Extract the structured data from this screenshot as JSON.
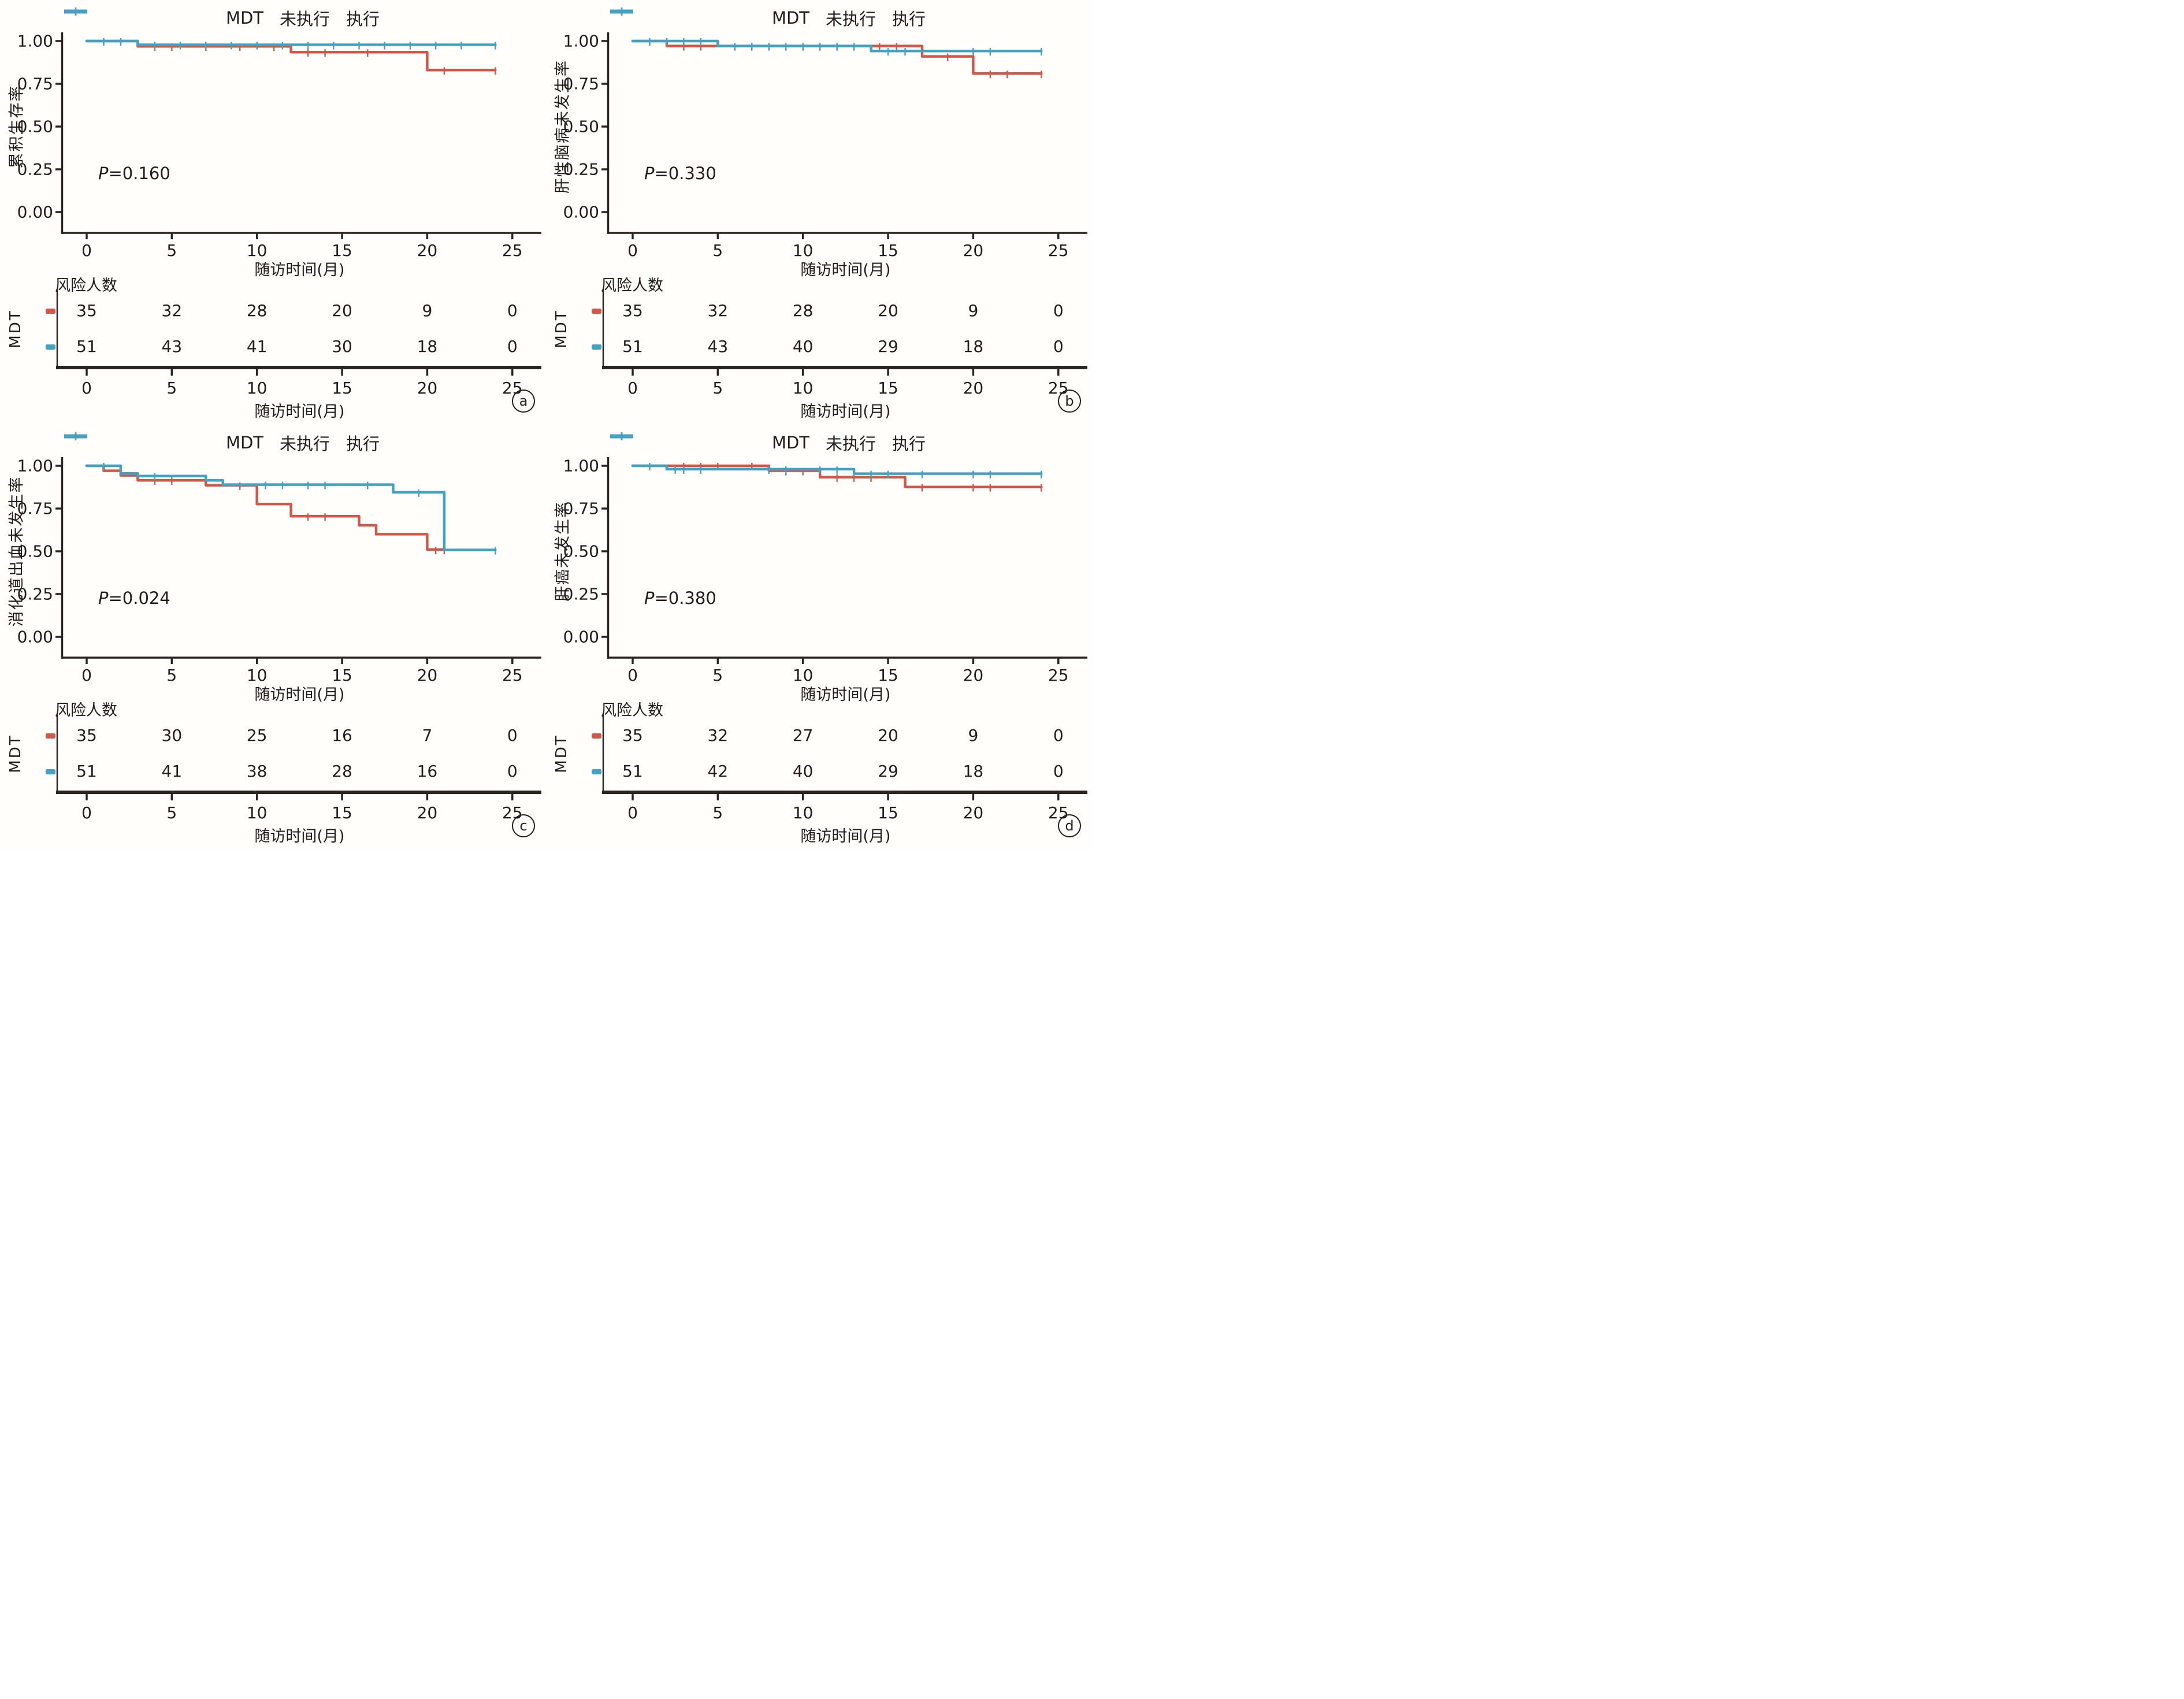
{
  "colors": {
    "red": "#d2574a",
    "blue": "#43a2c2",
    "axis": "#2a2422"
  },
  "legend": {
    "prefix": "MDT",
    "items": [
      {
        "label": "未执行",
        "color_key": "red"
      },
      {
        "label": "执行",
        "color_key": "blue"
      }
    ]
  },
  "axes": {
    "xlabel": "随访时间(月)",
    "x_ticks": [
      0,
      5,
      10,
      15,
      20,
      25
    ],
    "x_tick_labels": [
      "0",
      "5",
      "10",
      "15",
      "20",
      "25"
    ],
    "y_ticks": [
      1.0,
      0.75,
      0.5,
      0.25,
      0.0
    ],
    "y_tick_labels": [
      "1.00",
      "0.75",
      "0.50",
      "0.25",
      "0.00"
    ],
    "xlim": [
      0,
      25
    ],
    "ylim": [
      0,
      1
    ]
  },
  "risk": {
    "header": "风险人数",
    "row_label": "MDT"
  },
  "chart_data": [
    {
      "type": "line",
      "subtype": "kaplan_meier_step",
      "panel_tag": "a",
      "ylabel": "累积生存率",
      "p_italic": "P",
      "p_rest": "=0.160",
      "series": [
        {
          "name": "未执行",
          "color_key": "red",
          "end_month": 24,
          "steps": [
            [
              0,
              1.0
            ],
            [
              3,
              0.969
            ],
            [
              12,
              0.935
            ],
            [
              20,
              0.83
            ]
          ],
          "censors": [
            [
              4,
              0.969
            ],
            [
              5,
              0.969
            ],
            [
              7,
              0.969
            ],
            [
              9,
              0.969
            ],
            [
              11,
              0.969
            ],
            [
              13,
              0.935
            ],
            [
              14,
              0.935
            ],
            [
              16.5,
              0.935
            ],
            [
              21,
              0.83
            ],
            [
              24,
              0.83
            ]
          ]
        },
        {
          "name": "执行",
          "color_key": "blue",
          "end_month": 24,
          "steps": [
            [
              0,
              1.0
            ],
            [
              3,
              0.978
            ]
          ],
          "censors": [
            [
              1,
              1.0
            ],
            [
              2,
              1.0
            ],
            [
              4,
              0.978
            ],
            [
              5.5,
              0.978
            ],
            [
              7,
              0.978
            ],
            [
              8.5,
              0.978
            ],
            [
              10,
              0.978
            ],
            [
              11.5,
              0.978
            ],
            [
              13,
              0.978
            ],
            [
              14.5,
              0.978
            ],
            [
              16,
              0.978
            ],
            [
              17.5,
              0.978
            ],
            [
              19,
              0.978
            ],
            [
              20.5,
              0.978
            ],
            [
              22,
              0.978
            ],
            [
              24,
              0.978
            ]
          ]
        }
      ],
      "risk_rows": [
        {
          "color_key": "red",
          "counts": [
            35,
            32,
            28,
            20,
            9,
            0
          ]
        },
        {
          "color_key": "blue",
          "counts": [
            51,
            43,
            41,
            30,
            18,
            0
          ]
        }
      ]
    },
    {
      "type": "line",
      "subtype": "kaplan_meier_step",
      "panel_tag": "b",
      "ylabel": "肝性脑病未发生率",
      "p_italic": "P",
      "p_rest": "=0.330",
      "series": [
        {
          "name": "未执行",
          "color_key": "red",
          "end_month": 24,
          "steps": [
            [
              0,
              1.0
            ],
            [
              2,
              0.971
            ],
            [
              17,
              0.91
            ],
            [
              20,
              0.81
            ]
          ],
          "censors": [
            [
              3,
              0.971
            ],
            [
              4,
              0.971
            ],
            [
              6,
              0.971
            ],
            [
              7,
              0.971
            ],
            [
              8,
              0.971
            ],
            [
              9,
              0.971
            ],
            [
              10,
              0.971
            ],
            [
              11,
              0.971
            ],
            [
              12,
              0.971
            ],
            [
              13,
              0.971
            ],
            [
              14.5,
              0.971
            ],
            [
              15.5,
              0.971
            ],
            [
              18.5,
              0.91
            ],
            [
              21,
              0.81
            ],
            [
              22,
              0.81
            ],
            [
              24,
              0.81
            ]
          ]
        },
        {
          "name": "执行",
          "color_key": "blue",
          "end_month": 24,
          "steps": [
            [
              0,
              1.0
            ],
            [
              5,
              0.971
            ],
            [
              14,
              0.942
            ]
          ],
          "censors": [
            [
              1,
              1.0
            ],
            [
              2,
              1.0
            ],
            [
              3,
              1.0
            ],
            [
              4,
              1.0
            ],
            [
              6,
              0.971
            ],
            [
              7,
              0.971
            ],
            [
              8,
              0.971
            ],
            [
              9,
              0.971
            ],
            [
              10,
              0.971
            ],
            [
              11,
              0.971
            ],
            [
              12,
              0.971
            ],
            [
              13,
              0.971
            ],
            [
              15,
              0.942
            ],
            [
              16,
              0.942
            ],
            [
              20,
              0.942
            ],
            [
              21,
              0.942
            ],
            [
              24,
              0.942
            ]
          ]
        }
      ],
      "risk_rows": [
        {
          "color_key": "red",
          "counts": [
            35,
            32,
            28,
            20,
            9,
            0
          ]
        },
        {
          "color_key": "blue",
          "counts": [
            51,
            43,
            40,
            29,
            18,
            0
          ]
        }
      ]
    },
    {
      "type": "line",
      "subtype": "kaplan_meier_step",
      "panel_tag": "c",
      "ylabel": "消化道出血未发生率",
      "p_italic": "P",
      "p_rest": "=0.024",
      "series": [
        {
          "name": "未执行",
          "color_key": "red",
          "end_month": 21,
          "steps": [
            [
              0,
              1.0
            ],
            [
              1,
              0.971
            ],
            [
              2,
              0.944
            ],
            [
              3,
              0.915
            ],
            [
              7,
              0.886
            ],
            [
              10,
              0.776
            ],
            [
              12,
              0.705
            ],
            [
              16,
              0.652
            ],
            [
              17,
              0.6
            ],
            [
              20,
              0.51
            ]
          ],
          "censors": [
            [
              4,
              0.915
            ],
            [
              5,
              0.915
            ],
            [
              9,
              0.886
            ],
            [
              13,
              0.705
            ],
            [
              14,
              0.705
            ],
            [
              20.5,
              0.51
            ],
            [
              21,
              0.51
            ]
          ]
        },
        {
          "name": "执行",
          "color_key": "blue",
          "end_month": 24,
          "steps": [
            [
              0,
              1.0
            ],
            [
              2,
              0.955
            ],
            [
              3,
              0.94
            ],
            [
              7,
              0.915
            ],
            [
              8,
              0.89
            ],
            [
              18,
              0.845
            ],
            [
              21,
              0.508
            ]
          ],
          "censors": [
            [
              1,
              1.0
            ],
            [
              4,
              0.94
            ],
            [
              10.5,
              0.89
            ],
            [
              11.5,
              0.89
            ],
            [
              13,
              0.89
            ],
            [
              14,
              0.89
            ],
            [
              16.5,
              0.89
            ],
            [
              19.5,
              0.845
            ],
            [
              24,
              0.508
            ]
          ]
        }
      ],
      "risk_rows": [
        {
          "color_key": "red",
          "counts": [
            35,
            30,
            25,
            16,
            7,
            0
          ]
        },
        {
          "color_key": "blue",
          "counts": [
            51,
            41,
            38,
            28,
            16,
            0
          ]
        }
      ]
    },
    {
      "type": "line",
      "subtype": "kaplan_meier_step",
      "panel_tag": "d",
      "ylabel": "肝癌未发生率",
      "p_italic": "P",
      "p_rest": "=0.380",
      "series": [
        {
          "name": "未执行",
          "color_key": "red",
          "end_month": 24,
          "steps": [
            [
              0,
              1.0
            ],
            [
              8,
              0.971
            ],
            [
              11,
              0.933
            ],
            [
              16,
              0.876
            ]
          ],
          "censors": [
            [
              3,
              1.0
            ],
            [
              4,
              1.0
            ],
            [
              5,
              1.0
            ],
            [
              7,
              1.0
            ],
            [
              9,
              0.971
            ],
            [
              10,
              0.971
            ],
            [
              12,
              0.933
            ],
            [
              13,
              0.933
            ],
            [
              14,
              0.933
            ],
            [
              17,
              0.876
            ],
            [
              20,
              0.876
            ],
            [
              21,
              0.876
            ],
            [
              24,
              0.876
            ]
          ]
        },
        {
          "name": "执行",
          "color_key": "blue",
          "end_month": 24,
          "steps": [
            [
              0,
              1.0
            ],
            [
              2,
              0.98
            ],
            [
              13,
              0.954
            ]
          ],
          "censors": [
            [
              1,
              1.0
            ],
            [
              2.5,
              0.98
            ],
            [
              3,
              0.98
            ],
            [
              4,
              0.98
            ],
            [
              8,
              0.98
            ],
            [
              9,
              0.98
            ],
            [
              11,
              0.98
            ],
            [
              12,
              0.98
            ],
            [
              14,
              0.954
            ],
            [
              15,
              0.954
            ],
            [
              17,
              0.954
            ],
            [
              20,
              0.954
            ],
            [
              21,
              0.954
            ],
            [
              24,
              0.954
            ]
          ]
        }
      ],
      "risk_rows": [
        {
          "color_key": "red",
          "counts": [
            35,
            32,
            27,
            20,
            9,
            0
          ]
        },
        {
          "color_key": "blue",
          "counts": [
            51,
            42,
            40,
            29,
            18,
            0
          ]
        }
      ]
    }
  ]
}
